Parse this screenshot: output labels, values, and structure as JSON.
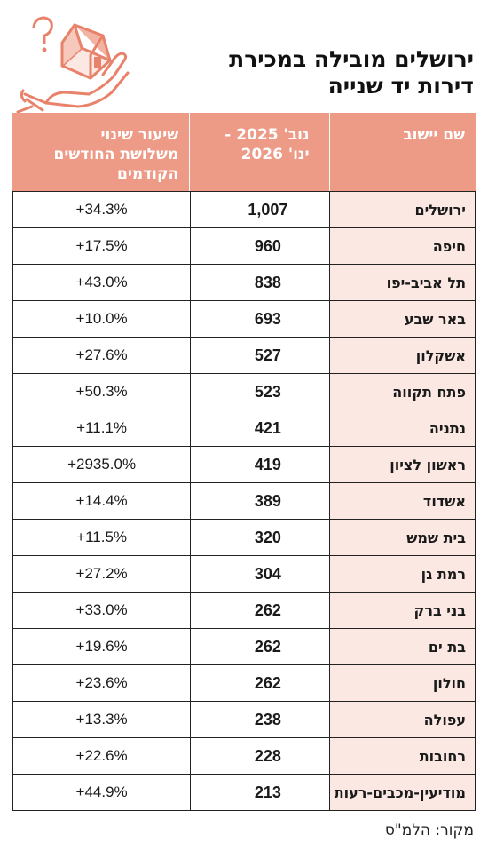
{
  "header": {
    "title_line1": "ירושלים מובילה במכירת",
    "title_line2": "דירות יד שנייה",
    "logo_icon": "house-in-hand-icon",
    "accent_color": "#ed9a86"
  },
  "table": {
    "columns": {
      "name": "שם יישוב",
      "period_line1": "נוב' 2025 -",
      "period_line2": "ינו' 2026",
      "change_line1": "שיעור שינוי",
      "change_line2": "משלושת החודשים",
      "change_line3": "הקודמים"
    },
    "rows": [
      {
        "name": "ירושלים",
        "value": "1,007",
        "change": "+34.3%"
      },
      {
        "name": "חיפה",
        "value": "960",
        "change": "+17.5%"
      },
      {
        "name": "תל אביב-יפו",
        "value": "838",
        "change": "+43.0%"
      },
      {
        "name": "באר שבע",
        "value": "693",
        "change": "+10.0%"
      },
      {
        "name": "אשקלון",
        "value": "527",
        "change": "+27.6%"
      },
      {
        "name": "פתח תקווה",
        "value": "523",
        "change": "+50.3%"
      },
      {
        "name": "נתניה",
        "value": "421",
        "change": "+11.1%"
      },
      {
        "name": "ראשון לציון",
        "value": "419",
        "change": "+2935.0%"
      },
      {
        "name": "אשדוד",
        "value": "389",
        "change": "+14.4%"
      },
      {
        "name": "בית שמש",
        "value": "320",
        "change": "+11.5%"
      },
      {
        "name": "רמת גן",
        "value": "304",
        "change": "+27.2%"
      },
      {
        "name": "בני ברק",
        "value": "262",
        "change": "+33.0%"
      },
      {
        "name": "בת ים",
        "value": "262",
        "change": "+19.6%"
      },
      {
        "name": "חולון",
        "value": "262",
        "change": "+23.6%"
      },
      {
        "name": "עפולה",
        "value": "238",
        "change": "+13.3%"
      },
      {
        "name": "רחובות",
        "value": "228",
        "change": "+22.6%"
      },
      {
        "name": "מודיעין-מכבים-רעות",
        "value": "213",
        "change": "+44.9%"
      }
    ]
  },
  "footer": {
    "source": "מקור: הלמ\"ס"
  }
}
